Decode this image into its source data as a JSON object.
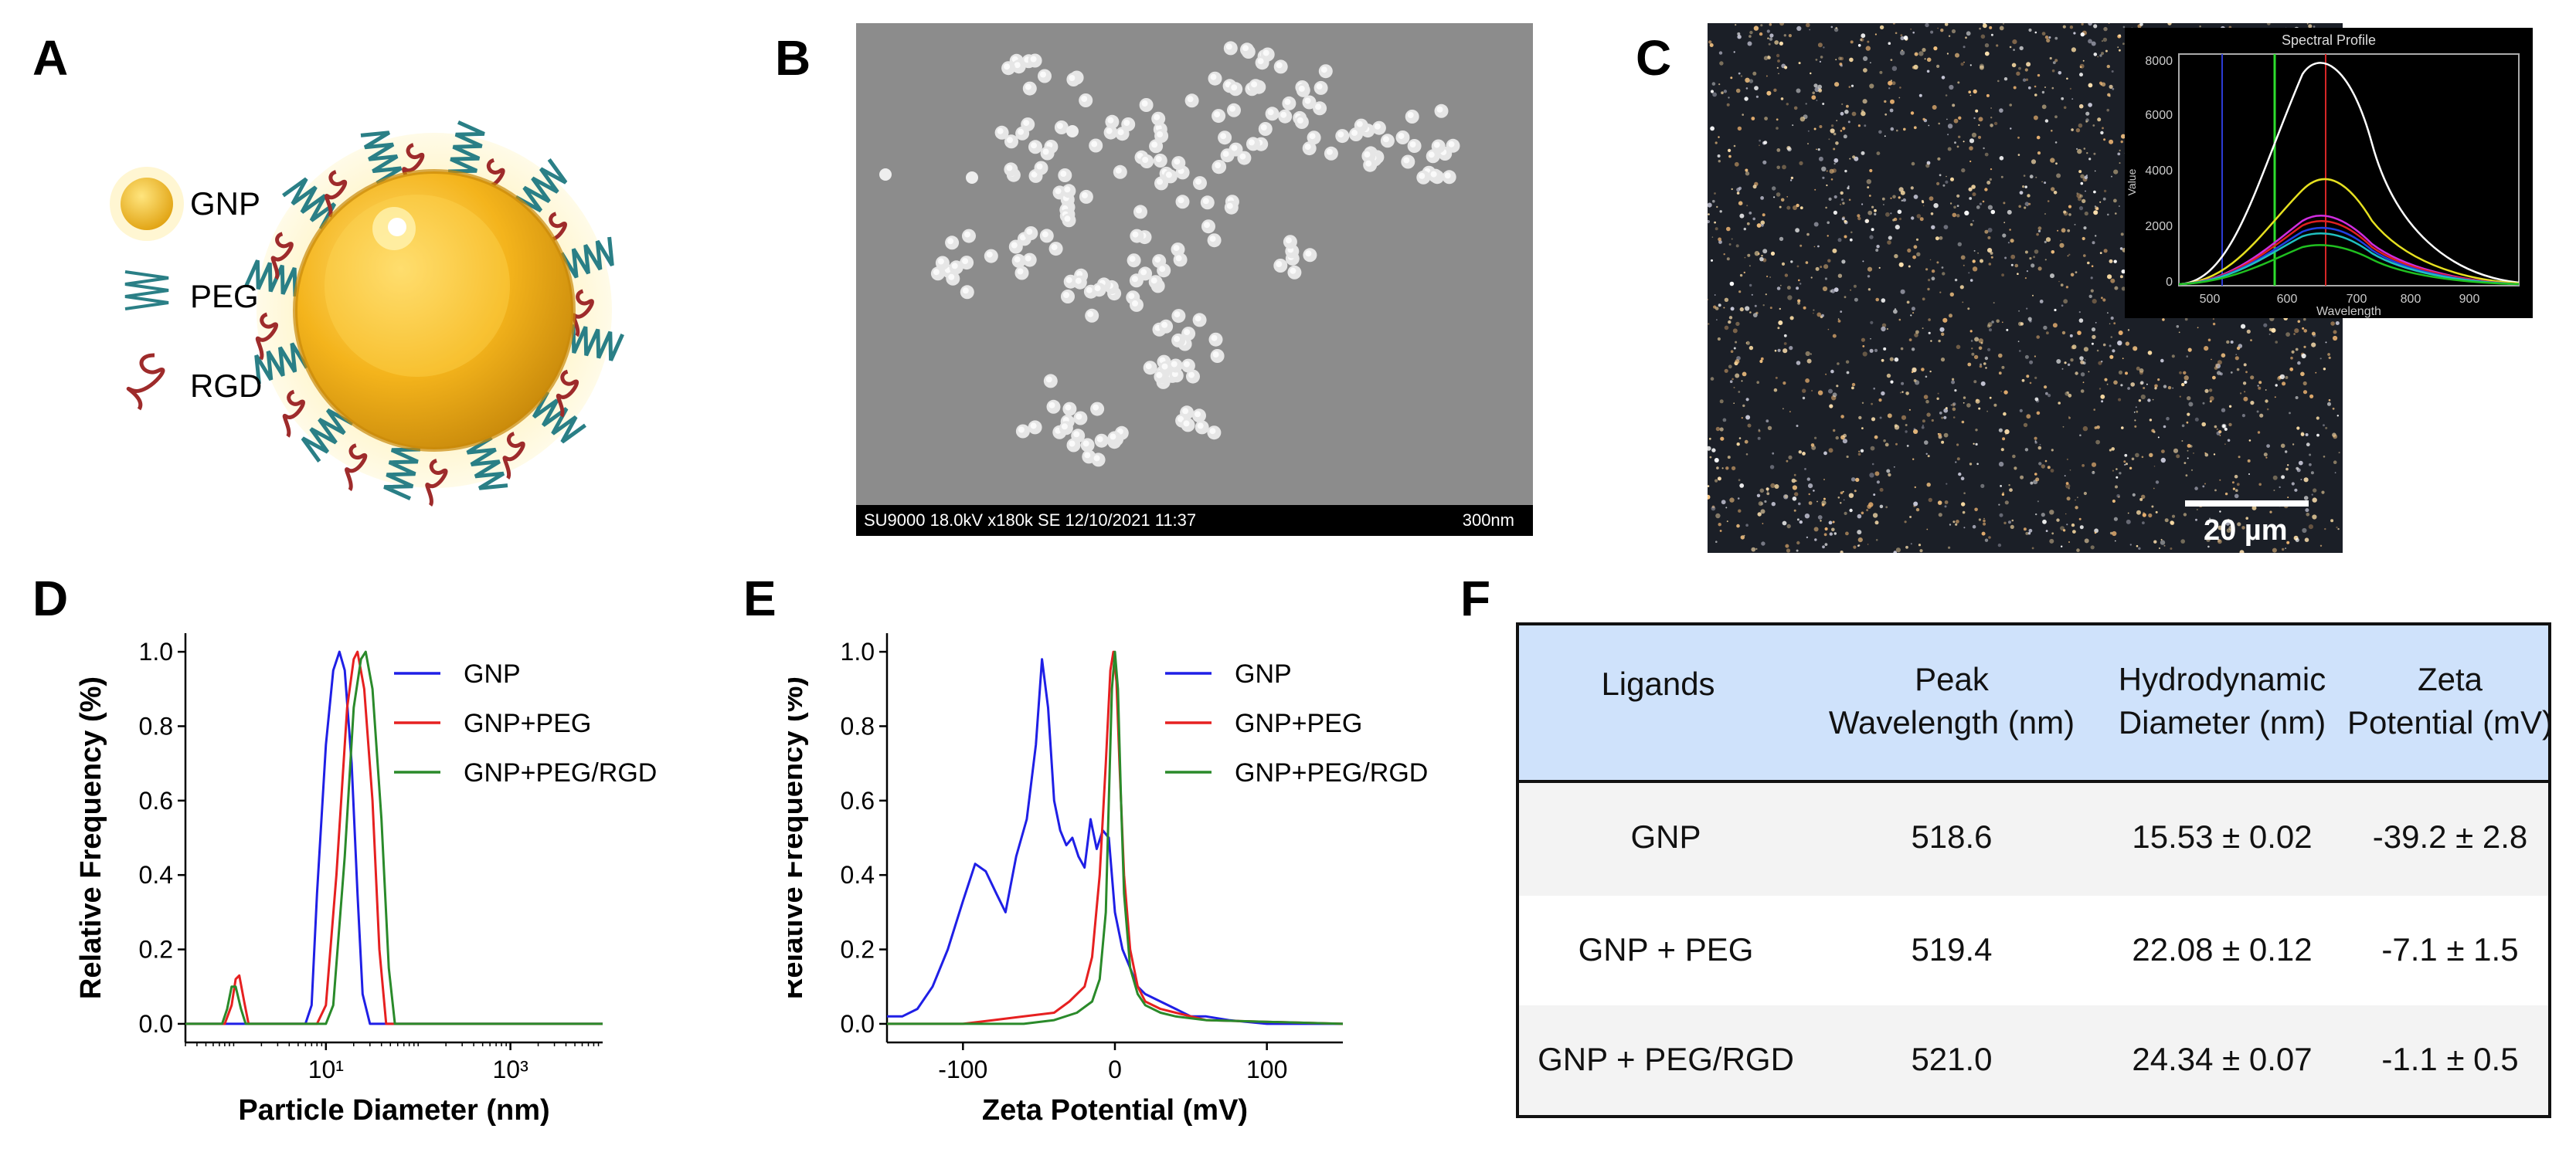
{
  "panel_labels": [
    "A",
    "B",
    "C",
    "D",
    "E",
    "F"
  ],
  "panel_a": {
    "legend": [
      {
        "label": "GNP",
        "icon": "gold-nanoparticle-icon"
      },
      {
        "label": "PEG",
        "icon": "peg-zigzag-icon"
      },
      {
        "label": "RGD",
        "icon": "rgd-peptide-icon"
      }
    ],
    "colors": {
      "gold": "#f2b418",
      "peg": "#2a7f86",
      "rgd": "#9e2b2b",
      "halo": "#fff4c8"
    }
  },
  "panel_b": {
    "caption_left": "SU9000 18.0kV x180k SE 12/10/2021 11:37",
    "caption_right": "300nm"
  },
  "panel_c": {
    "scale_bar": "20 µm",
    "inset": {
      "title": "Spectral Profile",
      "xlabel": "Wavelength",
      "ylabel": "Value",
      "x_ticks": [
        "500",
        "600",
        "700",
        "800",
        "900"
      ],
      "y_ticks": [
        "0",
        "2000",
        "4000",
        "6000",
        "8000"
      ]
    }
  },
  "panel_d": {
    "chart_data": {
      "type": "line",
      "xlabel": "Particle Diameter (nm)",
      "ylabel": "Relative Frequency (%)",
      "x_scale": "log",
      "xlim": [
        0.3,
        10000
      ],
      "ylim": [
        -0.05,
        1.05
      ],
      "x_ticks": [
        {
          "value": 10,
          "label": "10¹"
        },
        {
          "value": 1000,
          "label": "10³"
        }
      ],
      "y_ticks": [
        "0.0",
        "0.2",
        "0.4",
        "0.6",
        "0.8",
        "1.0"
      ],
      "legend_position": "top-right",
      "series": [
        {
          "name": "GNP",
          "color": "#1f1fe6",
          "x": [
            0.3,
            6,
            7,
            8,
            10,
            12,
            14,
            16,
            19,
            22,
            25,
            30,
            10000
          ],
          "y": [
            0,
            0,
            0.05,
            0.35,
            0.75,
            0.95,
            1.0,
            0.95,
            0.7,
            0.35,
            0.08,
            0,
            0
          ]
        },
        {
          "name": "GNP+PEG",
          "color": "#e62020",
          "x": [
            0.3,
            0.8,
            0.95,
            1.05,
            1.15,
            1.3,
            1.45,
            8,
            10,
            13,
            17,
            20,
            22,
            26,
            32,
            38,
            45,
            10000
          ],
          "y": [
            0,
            0,
            0.05,
            0.12,
            0.13,
            0.06,
            0,
            0,
            0.05,
            0.4,
            0.85,
            0.98,
            1.0,
            0.9,
            0.6,
            0.2,
            0,
            0
          ]
        },
        {
          "name": "GNP+PEG/RGD",
          "color": "#2a8a2a",
          "x": [
            0.3,
            0.75,
            0.85,
            0.95,
            1.05,
            1.2,
            1.35,
            10,
            12,
            16,
            20,
            24,
            27,
            32,
            40,
            48,
            56,
            10000
          ],
          "y": [
            0,
            0,
            0.04,
            0.1,
            0.1,
            0.04,
            0,
            0,
            0.05,
            0.45,
            0.85,
            0.98,
            1.0,
            0.9,
            0.55,
            0.15,
            0,
            0
          ]
        }
      ]
    }
  },
  "panel_e": {
    "chart_data": {
      "type": "line",
      "xlabel": "Zeta Potential (mV)",
      "ylabel": "Relative Frequency (%)",
      "xlim": [
        -150,
        150
      ],
      "ylim": [
        -0.05,
        1.05
      ],
      "x_ticks": [
        "-100",
        "0",
        "100"
      ],
      "y_ticks": [
        "0.0",
        "0.2",
        "0.4",
        "0.6",
        "0.8",
        "1.0"
      ],
      "legend_position": "top-right",
      "series": [
        {
          "name": "GNP",
          "color": "#1f1fe6",
          "x": [
            -150,
            -140,
            -130,
            -120,
            -110,
            -100,
            -92,
            -85,
            -78,
            -72,
            -65,
            -58,
            -52,
            -48,
            -44,
            -40,
            -36,
            -32,
            -28,
            -24,
            -20,
            -16,
            -12,
            -8,
            -4,
            0,
            5,
            10,
            15,
            20,
            30,
            40,
            50,
            60,
            75,
            100,
            150
          ],
          "y": [
            0.02,
            0.02,
            0.04,
            0.1,
            0.2,
            0.33,
            0.43,
            0.41,
            0.35,
            0.3,
            0.45,
            0.55,
            0.75,
            0.98,
            0.85,
            0.6,
            0.52,
            0.48,
            0.5,
            0.45,
            0.42,
            0.55,
            0.47,
            0.52,
            0.5,
            0.3,
            0.2,
            0.15,
            0.1,
            0.08,
            0.06,
            0.04,
            0.02,
            0.02,
            0.01,
            0,
            0
          ]
        },
        {
          "name": "GNP+PEG",
          "color": "#e62020",
          "x": [
            -150,
            -100,
            -80,
            -60,
            -40,
            -30,
            -20,
            -15,
            -10,
            -6,
            -3,
            -1,
            1,
            3,
            6,
            10,
            15,
            20,
            30,
            40,
            60,
            150
          ],
          "y": [
            0,
            0,
            0.01,
            0.02,
            0.03,
            0.06,
            0.1,
            0.18,
            0.4,
            0.7,
            0.95,
            1.0,
            0.92,
            0.7,
            0.4,
            0.2,
            0.1,
            0.06,
            0.04,
            0.03,
            0.01,
            0
          ]
        },
        {
          "name": "GNP+PEG/RGD",
          "color": "#2a8a2a",
          "x": [
            -150,
            -100,
            -60,
            -40,
            -25,
            -15,
            -10,
            -6,
            -4,
            -2,
            0,
            2,
            4,
            6,
            10,
            15,
            20,
            30,
            40,
            60,
            150
          ],
          "y": [
            0,
            0,
            0,
            0.01,
            0.03,
            0.06,
            0.12,
            0.3,
            0.6,
            0.9,
            1.0,
            0.9,
            0.6,
            0.35,
            0.15,
            0.08,
            0.05,
            0.03,
            0.02,
            0.01,
            0
          ]
        }
      ]
    }
  },
  "panel_f": {
    "headers": [
      [
        "Ligands"
      ],
      [
        "Peak",
        "Wavelength (nm)"
      ],
      [
        "Hydrodynamic",
        "Diameter (nm)"
      ],
      [
        "Zeta",
        "Potential (mV)"
      ]
    ],
    "rows": [
      [
        "GNP",
        "518.6",
        "15.53 ± 0.02",
        "-39.2 ± 2.8"
      ],
      [
        "GNP + PEG",
        "519.4",
        "22.08 ± 0.12",
        "-7.1 ± 1.5"
      ],
      [
        "GNP + PEG/RGD",
        "521.0",
        "24.34 ± 0.07",
        "-1.1 ± 0.5"
      ]
    ],
    "colors": {
      "header_bg": "#cfe2fb",
      "row_alt": "#f3f3f3"
    }
  }
}
